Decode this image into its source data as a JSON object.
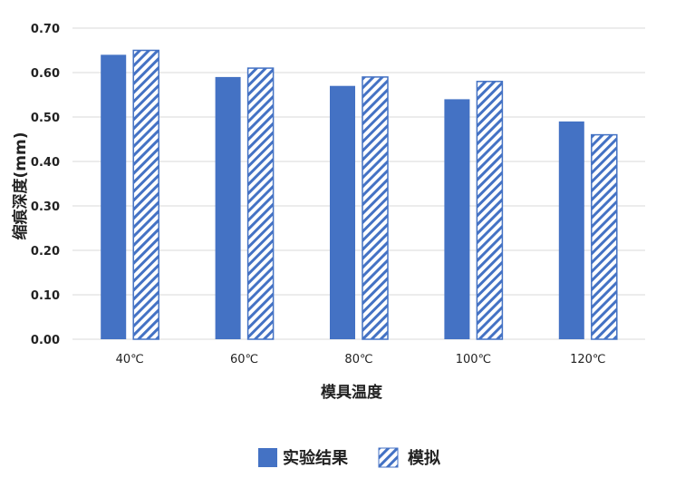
{
  "chart_data": {
    "type": "bar",
    "categories": [
      "40℃",
      "60℃",
      "80℃",
      "100℃",
      "120℃"
    ],
    "series": [
      {
        "name": "实验结果",
        "values": [
          0.64,
          0.59,
          0.57,
          0.54,
          0.49
        ],
        "color": "#4472C4",
        "fill": "solid"
      },
      {
        "name": "模拟",
        "values": [
          0.65,
          0.61,
          0.59,
          0.58,
          0.46
        ],
        "color": "#4472C4",
        "fill": "diagonal-hatch"
      }
    ],
    "xlabel": "模具温度",
    "ylabel": "缩痕深度(mm)",
    "ylim": [
      0,
      0.7
    ],
    "yticks": [
      "0.00",
      "0.10",
      "0.20",
      "0.30",
      "0.40",
      "0.50",
      "0.60",
      "0.70"
    ],
    "grid": true,
    "legend": "bottom"
  }
}
